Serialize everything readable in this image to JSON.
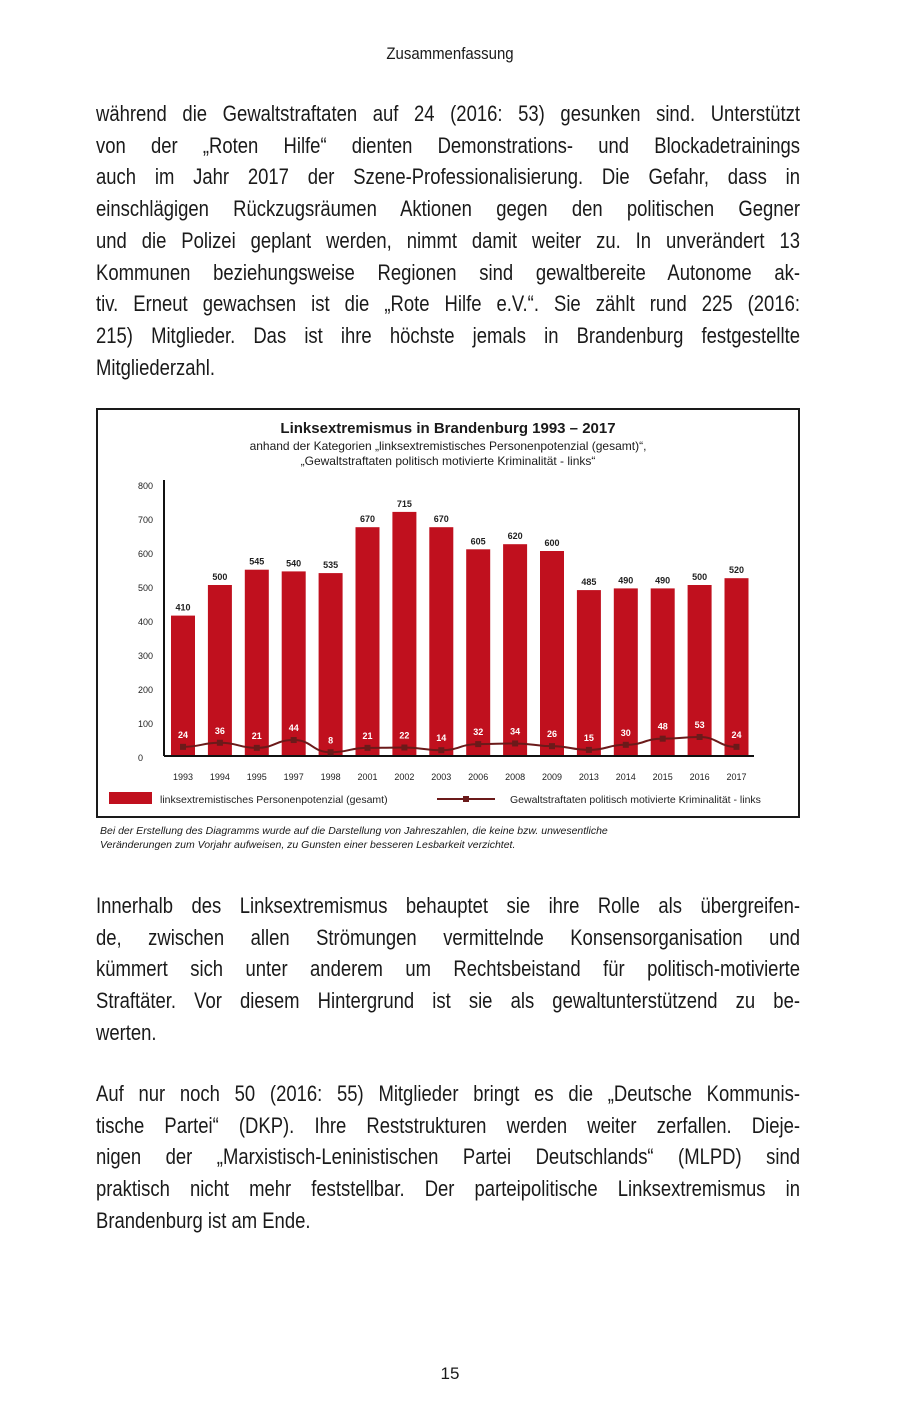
{
  "running_header": "Zusammenfassung",
  "paragraphs": [
    [
      "während die Gewaltstraftaten auf 24 (2016: 53) gesunken sind. Unterstützt",
      "von der „Roten Hilfe“ dienten Demonstrations- und Blockadetrainings",
      "auch im Jahr 2017 der Szene-Professionalisierung. Die Gefahr, dass in",
      "einschlägigen Rückzugsräumen Aktionen gegen den politischen Gegner",
      "und die Polizei geplant werden, nimmt damit weiter zu. In unverändert 13",
      "Kommunen beziehungsweise Regionen sind gewaltbereite Autonome ak-",
      "tiv. Erneut gewachsen ist die „Rote Hilfe e.V.“. Sie zählt rund 225 (2016:",
      "215) Mitglieder. Das ist ihre höchste jemals in Brandenburg festgestellte",
      "Mitgliederzahl."
    ],
    [
      "Innerhalb des Linksextremismus behauptet sie ihre Rolle als übergreifen-",
      "de, zwischen allen Strömungen vermittelnde Konsensorganisation und",
      "kümmert sich unter anderem um Rechtsbeistand für politisch-motivierte",
      "Straftäter. Vor diesem Hintergrund ist sie als gewaltunterstützend zu be-",
      "werten."
    ],
    [
      "Auf nur noch 50 (2016: 55) Mitglieder bringt es die „Deutsche Kommunis-",
      "tische Partei“ (DKP). Ihre Reststrukturen werden weiter zerfallen. Dieje-",
      "nigen der „Marxistisch-Leninistischen Partei Deutschlands“ (MLPD) sind",
      "praktisch nicht mehr feststellbar. Der parteipolitische Linksextremismus in",
      "Brandenburg ist am Ende."
    ]
  ],
  "chart_data": {
    "type": "bar",
    "title": "Linksextremismus in Brandenburg 1993 – 2017",
    "subtitle_lines": [
      "anhand der Kategorien „linksextremistisches Personenpotenzial (gesamt)“,",
      "„Gewaltstraftaten politisch motivierte Kriminalität - links“"
    ],
    "categories": [
      "1993",
      "1994",
      "1995",
      "1997",
      "1998",
      "2001",
      "2002",
      "2003",
      "2006",
      "2008",
      "2009",
      "2013",
      "2014",
      "2015",
      "2016",
      "2017"
    ],
    "series": [
      {
        "name": "linksextremistisches Personenpotenzial (gesamt)",
        "type": "bar",
        "color": "#c0101e",
        "values": [
          410,
          500,
          545,
          540,
          535,
          670,
          715,
          670,
          605,
          620,
          600,
          485,
          490,
          490,
          500,
          520
        ]
      },
      {
        "name": "Gewaltstraftaten politisch motivierte Kriminalität - links",
        "type": "line",
        "color": "#6b1a1a",
        "values": [
          24,
          36,
          21,
          44,
          8,
          21,
          22,
          14,
          32,
          34,
          26,
          15,
          30,
          48,
          53,
          24
        ]
      }
    ],
    "ylim": [
      0,
      800
    ],
    "yticks": [
      0,
      100,
      200,
      300,
      400,
      500,
      600,
      700,
      800
    ],
    "grid": false,
    "legend": "bottom"
  },
  "chart_caption": [
    "Bei der Erstellung des Diagramms wurde auf die Darstellung von Jahreszahlen, die keine bzw. unwesentliche",
    "Veränderungen zum Vorjahr aufweisen, zu Gunsten einer besseren Lesbarkeit verzichtet."
  ],
  "page_number": "15"
}
